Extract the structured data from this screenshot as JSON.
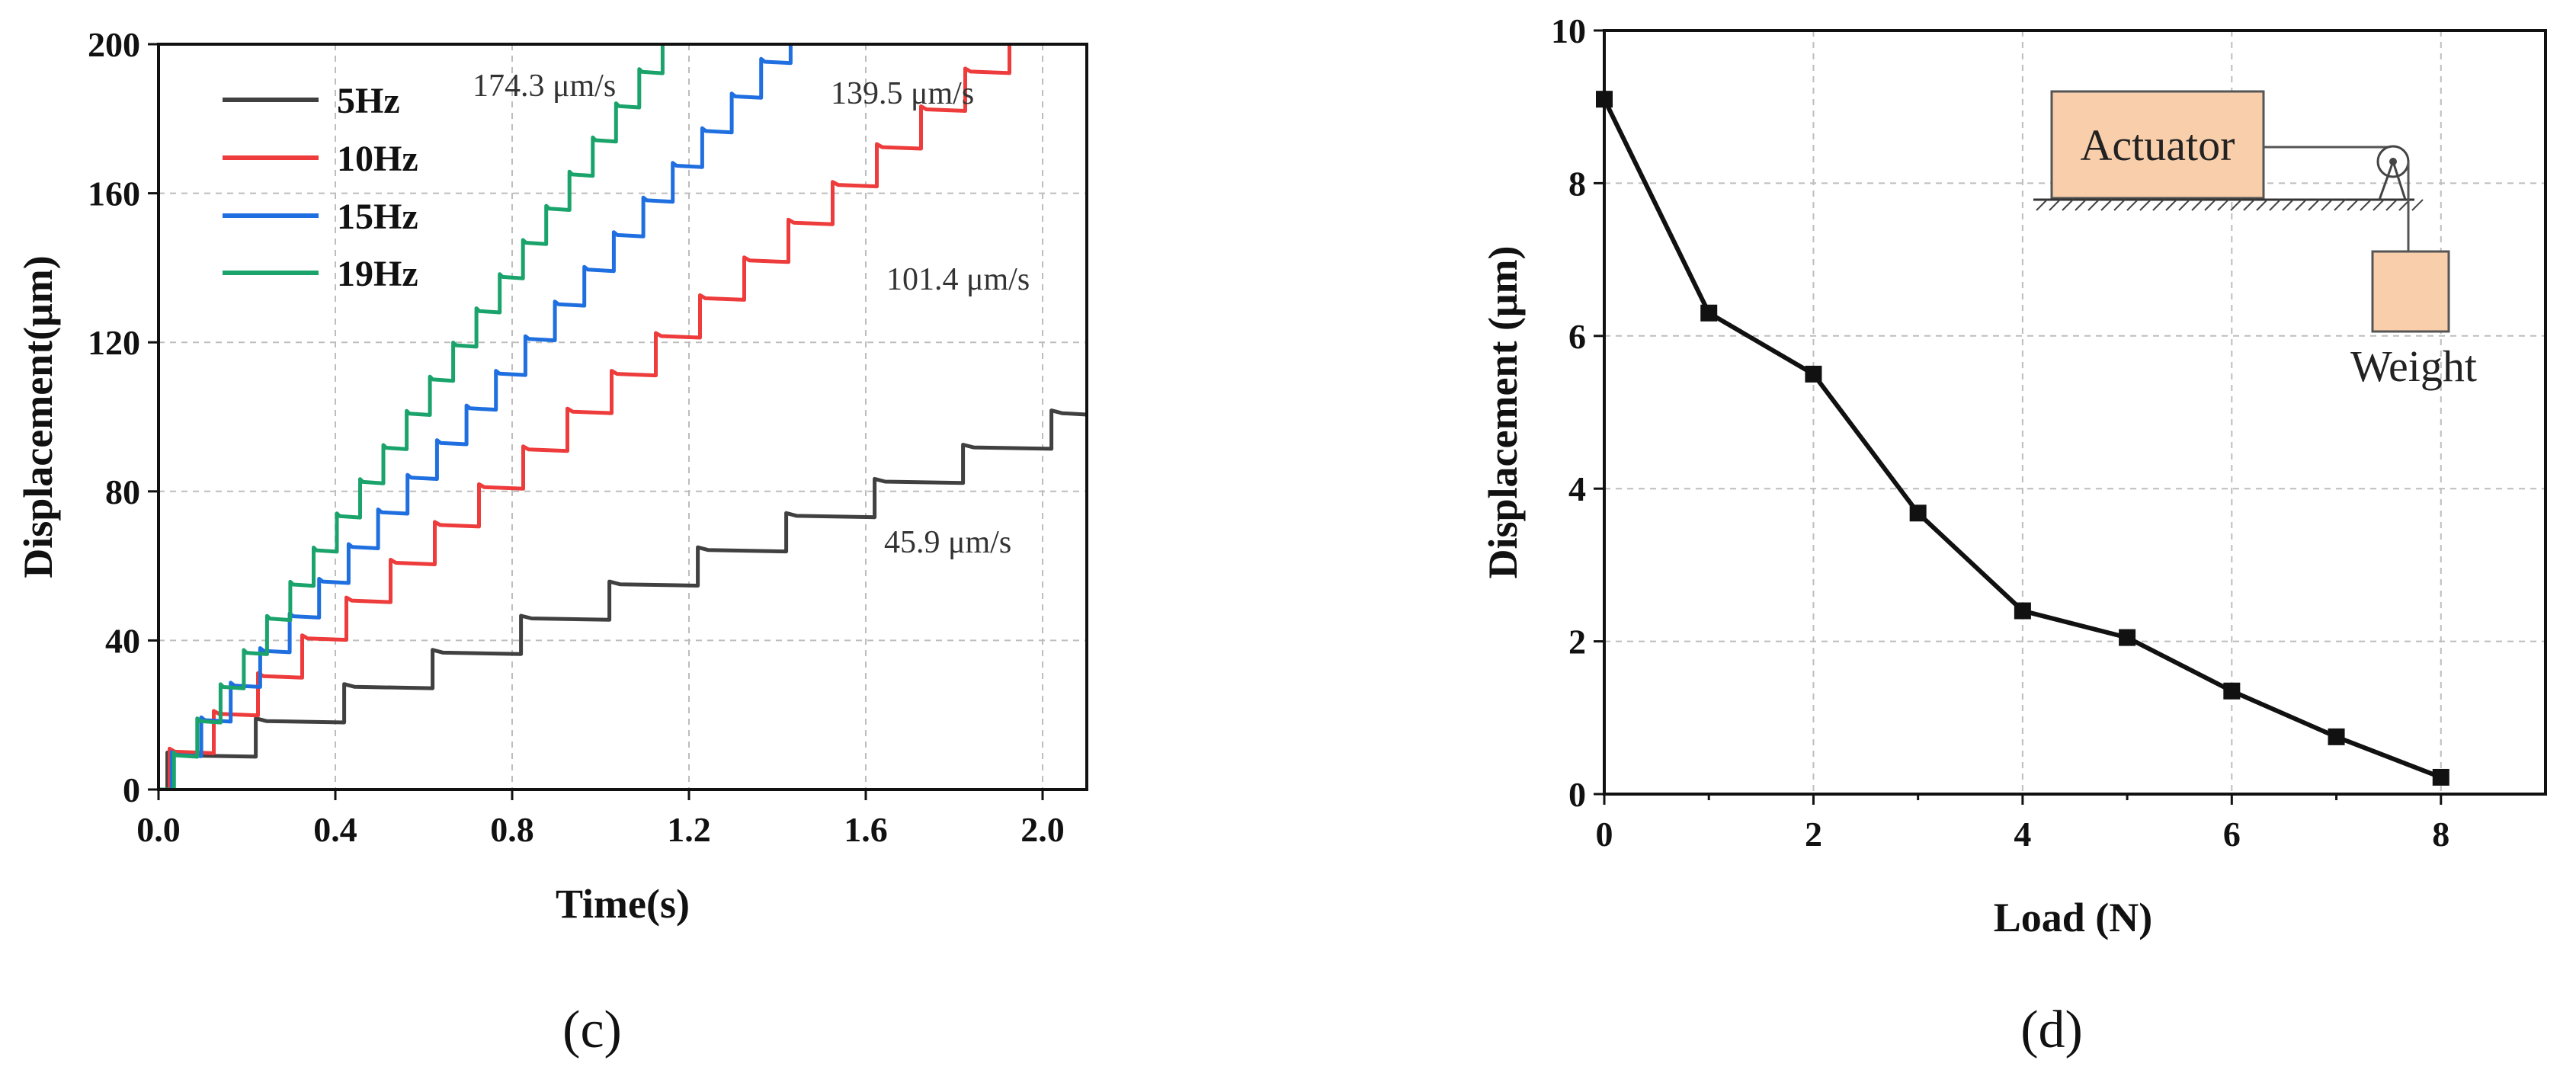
{
  "chart_data": [
    {
      "type": "line",
      "panel_label": "(c)",
      "xlabel": "Time(s)",
      "ylabel": "Displacement(μm)",
      "xlim": [
        0,
        2.1
      ],
      "ylim": [
        0,
        200
      ],
      "xticks": [
        "0.0",
        "0.4",
        "0.8",
        "1.2",
        "1.6",
        "2.0"
      ],
      "yticks": [
        "0",
        "40",
        "80",
        "120",
        "160",
        "200"
      ],
      "grid": true,
      "legend_position": "top-left",
      "series": [
        {
          "name": "5Hz",
          "color": "#404040",
          "frequency_hz": 5,
          "step_um": 9.18,
          "speed_label": "45.9 μm/s"
        },
        {
          "name": "10Hz",
          "color": "#ee3b3b",
          "frequency_hz": 10,
          "step_um": 10.14,
          "speed_label": "101.4 μm/s"
        },
        {
          "name": "15Hz",
          "color": "#1f6fe0",
          "frequency_hz": 15,
          "step_um": 9.3,
          "speed_label": "139.5 μm/s"
        },
        {
          "name": "19Hz",
          "color": "#1aa36b",
          "frequency_hz": 19,
          "step_um": 9.17,
          "speed_label": "174.3 μm/s"
        }
      ]
    },
    {
      "type": "line",
      "panel_label": "(d)",
      "xlabel": "Load (N)",
      "ylabel": "Displacement (μm)",
      "xlim": [
        0,
        9
      ],
      "ylim": [
        0,
        10
      ],
      "xticks": [
        "0",
        "2",
        "4",
        "6",
        "8"
      ],
      "yticks": [
        "0",
        "2",
        "4",
        "6",
        "8",
        "10"
      ],
      "grid": true,
      "series": [
        {
          "name": "Displacement",
          "color": "#111111",
          "x": [
            0,
            1,
            2,
            3,
            4,
            5,
            6,
            7,
            8
          ],
          "y": [
            9.1,
            6.3,
            5.5,
            3.68,
            2.4,
            2.05,
            1.35,
            0.75,
            0.22
          ]
        }
      ],
      "inset": {
        "actuator_label": "Actuator",
        "weight_label": "Weight",
        "box_color": "#f9cfab"
      }
    }
  ]
}
